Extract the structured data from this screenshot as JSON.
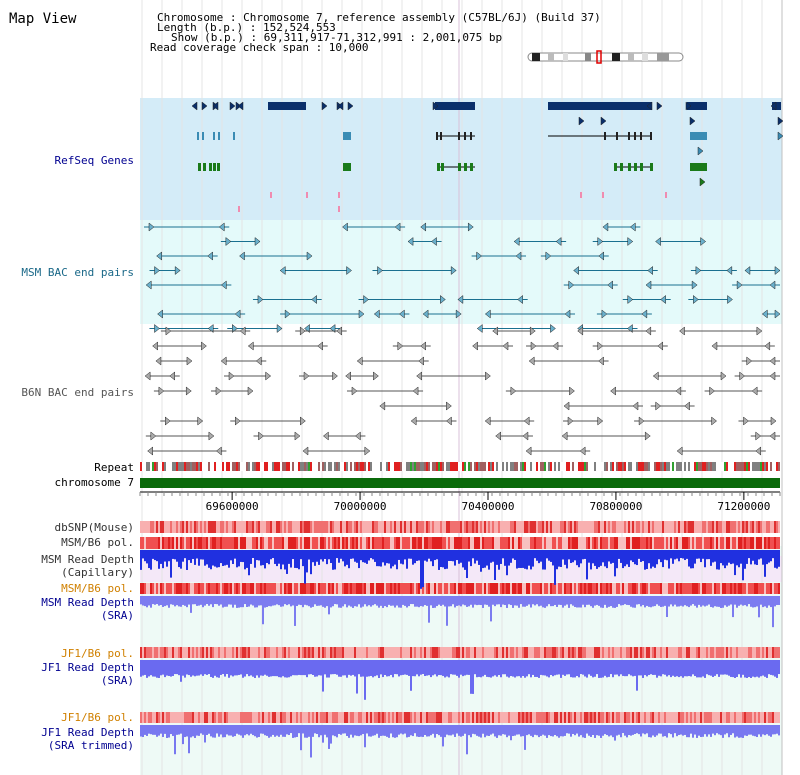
{
  "header": {
    "title": "Map View",
    "info": [
      "Chromosome     : Chromosome 7, reference assembly (C57BL/6J) (Build 37)",
      "Length (b.p.) : 152,524,553",
      "Show (b.p.) : 69,311,917-71,312,991 : 2,001,075 bp",
      "Read coverage check span : 10,000"
    ]
  },
  "tracks": {
    "refseq": "RefSeq Genes",
    "msm_bac": "MSM BAC end pairs",
    "b6n_bac": "B6N BAC end pairs",
    "repeat": "Repeat",
    "chromosome": "chromosome 7",
    "dbsnp": "dbSNP(Mouse)",
    "msm_b6_pol_1": "MSM/B6 pol.",
    "msm_depth_cap_1": "MSM Read Depth",
    "msm_depth_cap_2": "(Capillary)",
    "msm_b6_pol_2": "MSM/B6 pol.",
    "msm_depth_sra_1": "MSM Read Depth",
    "msm_depth_sra_2": "(SRA)",
    "jf1_b6_pol_1": "JF1/B6 pol.",
    "jf1_depth_1": "JF1 Read Depth",
    "jf1_depth_2": "(SRA)",
    "jf1_b6_pol_2": "JF1/B6 pol.",
    "jf1_trim_1": "JF1 Read Depth",
    "jf1_trim_2": "(SRA trimmed)"
  },
  "axis": {
    "ticks": [
      "69600000",
      "70000000",
      "70400000",
      "70800000",
      "71200000"
    ],
    "tick_values": [
      69600000,
      70000000,
      70400000,
      70800000,
      71200000
    ],
    "range": [
      69311917,
      71312991
    ]
  },
  "colors": {
    "refseq_bg": "#d4ecf8",
    "msm_bg": "#e4fafa",
    "depth_bg": "#eefaf0",
    "gene_dark": "#0a2f6b",
    "gene_mid": "#3a8cb4",
    "gene_green": "#1a7a1a",
    "bac_msm": "#1a7090",
    "bac_b6n": "#555555",
    "chrom": "#0a6a0a",
    "depth_blue": "#5050e8",
    "pol_red": "#e04040",
    "label_blue": "#000090",
    "label_orange": "#d08000"
  }
}
